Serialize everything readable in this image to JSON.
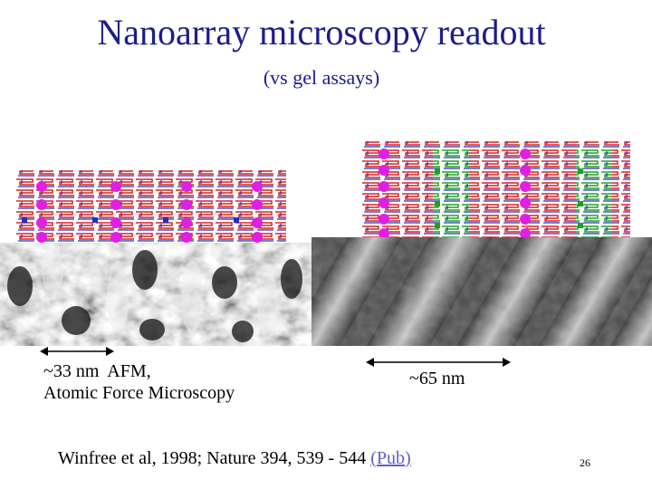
{
  "slide": {
    "title": "Nanoarray microscopy readout",
    "subtitle": "(vs gel assays)",
    "left_label_line1": "~33 nm  AFM,",
    "left_label_line2": "Atomic Force Microscopy",
    "right_label": "~65 nm",
    "citation": "Winfree et al, 1998; Nature 394, 539 - 544 ",
    "link_text": "(Pub)",
    "slide_number": "26"
  },
  "colors": {
    "title": "#1c1c8c",
    "link": "#6060c8",
    "dna_red": "#d82020",
    "dna_blue": "#2030c0",
    "marker_magenta": "#e020e0",
    "marker_green": "#20a020"
  }
}
